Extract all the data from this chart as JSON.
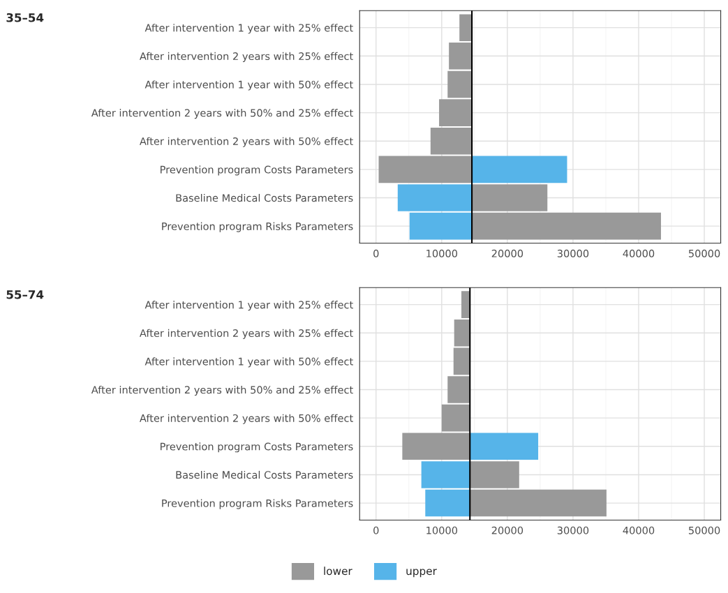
{
  "chart_data": [
    {
      "type": "bar",
      "orientation": "horizontal",
      "title": "35–54",
      "categories": [
        "After intervention 1 year with 25% effect",
        "After intervention 2 years with 25% effect",
        "After intervention 1 year with 50% effect",
        "After intervention 2 years with 50% and 25% effect",
        "After intervention 2 years with 50% effect",
        "Prevention program Costs Parameters",
        "Baseline Medical Costs Parameters",
        "Prevention program Risks Parameters"
      ],
      "series": [
        {
          "color": "#999999",
          "base": [
            12700,
            11100,
            10900,
            9600,
            8300,
            400,
            14600,
            14600
          ],
          "values": [
            1900,
            3500,
            3700,
            5000,
            6300,
            14200,
            11500,
            28800
          ]
        },
        {
          "color": "#56b4e9",
          "base": [
            null,
            null,
            null,
            null,
            null,
            14600,
            3300,
            5100
          ],
          "values": [
            null,
            null,
            null,
            null,
            null,
            14500,
            11300,
            9500
          ]
        }
      ],
      "xlim": [
        -2500,
        52500
      ],
      "xticks": [
        0,
        10000,
        20000,
        30000,
        40000,
        50000
      ],
      "ref_lines": [
        {
          "axis": "x",
          "value": 14600,
          "color": "#000000"
        }
      ],
      "grid": true
    },
    {
      "type": "bar",
      "orientation": "horizontal",
      "title": "55–74",
      "categories": [
        "After intervention 1 year with 25% effect",
        "After intervention 2 years with 25% effect",
        "After intervention 1 year with 50% effect",
        "After intervention 2 years with 50% and 25% effect",
        "After intervention 2 years with 50% effect",
        "Prevention program Costs Parameters",
        "Baseline Medical Costs Parameters",
        "Prevention program Risks Parameters"
      ],
      "series": [
        {
          "name": "lower",
          "color": "#999999",
          "base": [
            13000,
            11900,
            11800,
            10900,
            10000,
            4000,
            14300,
            14300
          ],
          "values": [
            1300,
            2400,
            2500,
            3400,
            4300,
            10300,
            7500,
            20800
          ]
        },
        {
          "name": "upper",
          "color": "#56b4e9",
          "base": [
            null,
            null,
            null,
            null,
            null,
            14300,
            6900,
            7500
          ],
          "values": [
            null,
            null,
            null,
            null,
            null,
            10400,
            7400,
            6800
          ]
        }
      ],
      "xlim": [
        -2500,
        52500
      ],
      "xticks": [
        0,
        10000,
        20000,
        30000,
        40000,
        50000
      ],
      "ref_lines": [
        {
          "axis": "x",
          "value": 14300,
          "color": "#000000"
        }
      ],
      "grid": true,
      "legend": "bottom"
    }
  ]
}
